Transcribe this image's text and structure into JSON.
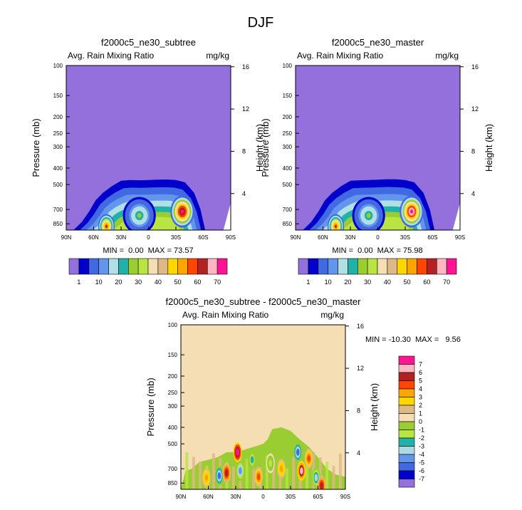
{
  "page_title": "DJF",
  "colors": {
    "background_top": "#9370db",
    "background_diff": "#f5deb3",
    "top_scale": [
      "#9370db",
      "#0000cd",
      "#4169e1",
      "#6495ed",
      "#b0e0e6",
      "#20b2aa",
      "#9acd32",
      "#b9e542",
      "#f5deb3",
      "#deb887",
      "#ffd700",
      "#ffa500",
      "#ff4500",
      "#b22222",
      "#ffb6c1",
      "#ff1493"
    ],
    "diff_scale": [
      "#9370db",
      "#0000cd",
      "#4169e1",
      "#6495ed",
      "#add8e6",
      "#20b2aa",
      "#b9e542",
      "#9acd32",
      "#f5deb3",
      "#deb887",
      "#ffd700",
      "#ffa500",
      "#ff4500",
      "#b22222",
      "#ffb6c1",
      "#ff1493"
    ]
  },
  "chart_data": [
    {
      "type": "heatmap",
      "title": "f2000c5_ne30_subtree",
      "left_label": "Avg. Rain Mixing Ratio",
      "right_label": "mg/kg",
      "ylabel": "Pressure (mb)",
      "ylabel_right": "Height (km)",
      "x_ticks": [
        "90N",
        "60N",
        "30N",
        "0",
        "30S",
        "60S",
        "90S"
      ],
      "x_values": [
        90,
        60,
        30,
        0,
        -30,
        -60,
        -90
      ],
      "y_ticks": [
        "100",
        "150",
        "200",
        "250",
        "300",
        "400",
        "500",
        "700",
        "850"
      ],
      "y_values": [
        100,
        150,
        200,
        250,
        300,
        400,
        500,
        700,
        850
      ],
      "ylim": [
        100,
        925
      ],
      "height_ticks": [
        "16",
        "12",
        "8",
        "4"
      ],
      "height_values": [
        16,
        12,
        8,
        4
      ],
      "stats": "MIN =  0.00  MAX = 73.57",
      "min": 0.0,
      "max": 73.57,
      "colorbar_labels": [
        "1",
        "10",
        "20",
        "30",
        "40",
        "50",
        "60",
        "70"
      ],
      "contour_boundary": [
        [
          82,
          925
        ],
        [
          73,
          830
        ],
        [
          65,
          720
        ],
        [
          58,
          620
        ],
        [
          50,
          560
        ],
        [
          40,
          510
        ],
        [
          30,
          475
        ],
        [
          20,
          470
        ],
        [
          10,
          472
        ],
        [
          0,
          470
        ],
        [
          -10,
          468
        ],
        [
          -20,
          467
        ],
        [
          -30,
          470
        ],
        [
          -40,
          485
        ],
        [
          -50,
          560
        ],
        [
          -57,
          700
        ],
        [
          -62,
          925
        ]
      ],
      "hotspots": [
        {
          "lat": 46,
          "p": 880,
          "value": 60,
          "spread_lat": 9,
          "spread_p": 120
        },
        {
          "lat": -37,
          "p": 720,
          "value": 73.57,
          "spread_lat": 13,
          "spread_p": 140
        },
        {
          "lat": 10,
          "p": 760,
          "value": 25,
          "spread_lat": 18,
          "spread_p": 180
        }
      ]
    },
    {
      "type": "heatmap",
      "title": "f2000c5_ne30_master",
      "left_label": "Avg. Rain Mixing Ratio",
      "right_label": "mg/kg",
      "ylabel": "Pressure (mb)",
      "ylabel_right": "Height (km)",
      "x_ticks": [
        "90N",
        "60N",
        "30N",
        "0",
        "30S",
        "60S",
        "90S"
      ],
      "x_values": [
        90,
        60,
        30,
        0,
        -30,
        -60,
        -90
      ],
      "y_ticks": [
        "100",
        "150",
        "200",
        "250",
        "300",
        "400",
        "500",
        "700",
        "850"
      ],
      "y_values": [
        100,
        150,
        200,
        250,
        300,
        400,
        500,
        700,
        850
      ],
      "ylim": [
        100,
        925
      ],
      "height_ticks": [
        "16",
        "12",
        "8",
        "4"
      ],
      "height_values": [
        16,
        12,
        8,
        4
      ],
      "stats": "MIN =  0.00  MAX = 75.98",
      "min": 0.0,
      "max": 75.98,
      "colorbar_labels": [
        "1",
        "10",
        "20",
        "30",
        "40",
        "50",
        "60",
        "70"
      ],
      "contour_boundary": [
        [
          82,
          925
        ],
        [
          73,
          830
        ],
        [
          65,
          720
        ],
        [
          58,
          620
        ],
        [
          50,
          560
        ],
        [
          40,
          510
        ],
        [
          30,
          475
        ],
        [
          20,
          472
        ],
        [
          10,
          470
        ],
        [
          0,
          468
        ],
        [
          -10,
          465
        ],
        [
          -20,
          466
        ],
        [
          -30,
          470
        ],
        [
          -40,
          485
        ],
        [
          -50,
          560
        ],
        [
          -57,
          700
        ],
        [
          -62,
          925
        ]
      ],
      "hotspots": [
        {
          "lat": 46,
          "p": 880,
          "value": 62,
          "spread_lat": 9,
          "spread_p": 120
        },
        {
          "lat": -37,
          "p": 720,
          "value": 75.98,
          "spread_lat": 13,
          "spread_p": 140
        },
        {
          "lat": 10,
          "p": 760,
          "value": 25,
          "spread_lat": 18,
          "spread_p": 180
        }
      ]
    },
    {
      "type": "heatmap",
      "title": "f2000c5_ne30_subtree - f2000c5_ne30_master",
      "left_label": "Avg. Rain Mixing Ratio",
      "right_label": "mg/kg",
      "ylabel": "Pressure (mb)",
      "ylabel_right": "Height (km)",
      "x_ticks": [
        "90N",
        "60N",
        "30N",
        "0",
        "30S",
        "60S",
        "90S"
      ],
      "x_values": [
        90,
        60,
        30,
        0,
        -30,
        -60,
        -90
      ],
      "y_ticks": [
        "100",
        "150",
        "200",
        "250",
        "300",
        "400",
        "500",
        "700",
        "850"
      ],
      "y_values": [
        100,
        150,
        200,
        250,
        300,
        400,
        500,
        700,
        850
      ],
      "ylim": [
        100,
        925
      ],
      "height_ticks": [
        "16",
        "12",
        "8",
        "4"
      ],
      "height_values": [
        16,
        12,
        8,
        4
      ],
      "stats": "MIN = -10.30  MAX =   9.56",
      "min": -10.3,
      "max": 9.56,
      "colorbar_labels": [
        "7",
        "6",
        "5",
        "4",
        "3",
        "2",
        "1",
        "0",
        "-1",
        "-2",
        "-3",
        "-4",
        "-5",
        "-6",
        "-7"
      ],
      "anomalies": [
        {
          "lat": 62,
          "p": 790,
          "value": 3
        },
        {
          "lat": 48,
          "p": 770,
          "value": -6
        },
        {
          "lat": 40,
          "p": 740,
          "value": 5
        },
        {
          "lat": 28,
          "p": 560,
          "value": 7
        },
        {
          "lat": 25,
          "p": 720,
          "value": -5
        },
        {
          "lat": 12,
          "p": 620,
          "value": -3
        },
        {
          "lat": 5,
          "p": 780,
          "value": 4
        },
        {
          "lat": -8,
          "p": 650,
          "value": -2
        },
        {
          "lat": -20,
          "p": 700,
          "value": 3
        },
        {
          "lat": -38,
          "p": 560,
          "value": -6
        },
        {
          "lat": -42,
          "p": 720,
          "value": 6
        },
        {
          "lat": -50,
          "p": 610,
          "value": 4
        },
        {
          "lat": -58,
          "p": 790,
          "value": -4
        },
        {
          "lat": -64,
          "p": 880,
          "value": 5
        }
      ]
    }
  ]
}
